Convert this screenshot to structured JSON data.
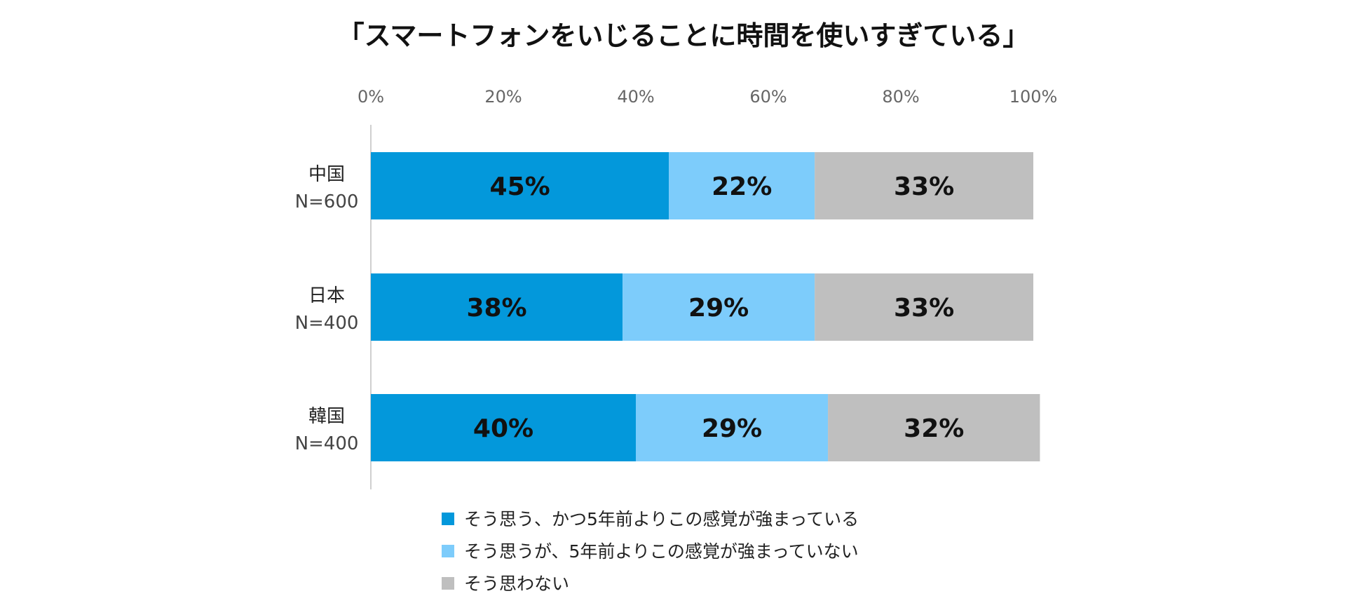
{
  "chart_data": {
    "type": "bar",
    "orientation": "horizontal",
    "stacked": true,
    "title": "「スマートフォンをいじることに時間を使いすぎている」",
    "xlabel": "",
    "ylabel": "",
    "xlim": [
      0,
      100
    ],
    "x_ticks": [
      "0%",
      "20%",
      "40%",
      "60%",
      "80%",
      "100%"
    ],
    "categories": [
      {
        "name": "中国",
        "n": "N=600"
      },
      {
        "name": "日本",
        "n": "N=400"
      },
      {
        "name": "韓国",
        "n": "N=400"
      }
    ],
    "series": [
      {
        "name": "そう思う、かつ5年前よりこの感覚が強まっている",
        "color": "#0398DB",
        "values": [
          45,
          38,
          40
        ],
        "labels": [
          "45%",
          "38%",
          "40%"
        ]
      },
      {
        "name": "そう思うが、5年前よりこの感覚が強まっていない",
        "color": "#7DCCFB",
        "values": [
          22,
          29,
          29
        ],
        "labels": [
          "22%",
          "29%",
          "29%"
        ]
      },
      {
        "name": "そう思わない",
        "color": "#BFBFBF",
        "values": [
          33,
          33,
          32
        ],
        "labels": [
          "33%",
          "33%",
          "32%"
        ]
      }
    ],
    "legend_position": "bottom"
  }
}
